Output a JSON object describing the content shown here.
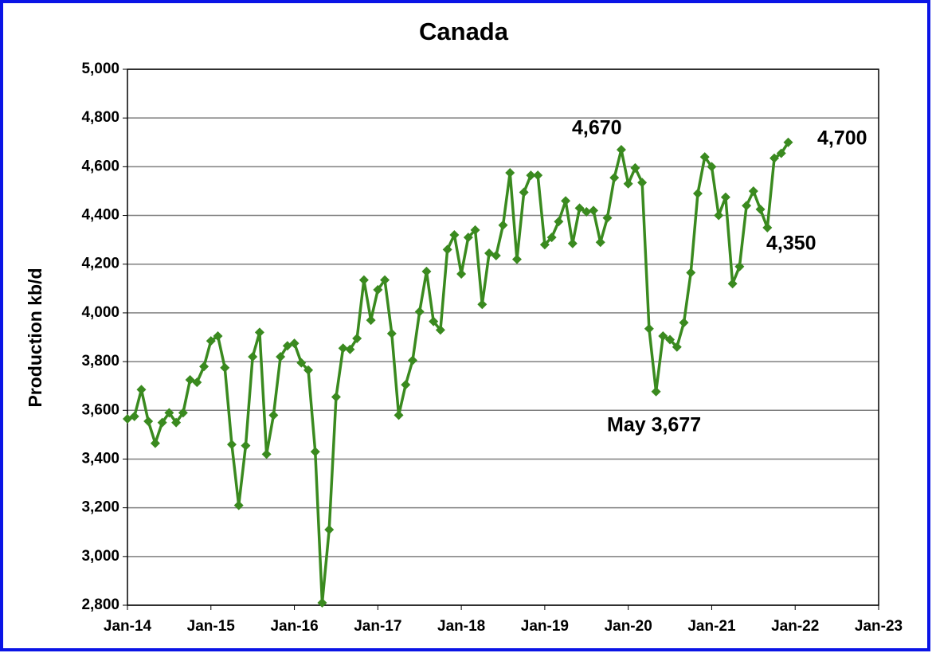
{
  "chart_data": {
    "type": "line",
    "title": "Canada",
    "y_label": "Production kb/d",
    "x": [
      2014,
      2014.0833,
      2014.1667,
      2014.25,
      2014.3333,
      2014.4167,
      2014.5,
      2014.5833,
      2014.6667,
      2014.75,
      2014.8333,
      2014.9167,
      2015,
      2015.0833,
      2015.1667,
      2015.25,
      2015.3333,
      2015.4167,
      2015.5,
      2015.5833,
      2015.6667,
      2015.75,
      2015.8333,
      2015.9167,
      2016,
      2016.0833,
      2016.1667,
      2016.25,
      2016.3333,
      2016.4167,
      2016.5,
      2016.5833,
      2016.6667,
      2016.75,
      2016.8333,
      2016.9167,
      2017,
      2017.0833,
      2017.1667,
      2017.25,
      2017.3333,
      2017.4167,
      2017.5,
      2017.5833,
      2017.6667,
      2017.75,
      2017.8333,
      2017.9167,
      2018,
      2018.0833,
      2018.1667,
      2018.25,
      2018.3333,
      2018.4167,
      2018.5,
      2018.5833,
      2018.6667,
      2018.75,
      2018.8333,
      2018.9167,
      2019,
      2019.0833,
      2019.1667,
      2019.25,
      2019.3333,
      2019.4167,
      2019.5,
      2019.5833,
      2019.6667,
      2019.75,
      2019.8333,
      2019.9167,
      2020,
      2020.0833,
      2020.1667,
      2020.25,
      2020.3333,
      2020.4167,
      2020.5,
      2020.5833,
      2020.6667,
      2020.75,
      2020.8333,
      2020.9167,
      2021,
      2021.0833,
      2021.1667,
      2021.25,
      2021.3333,
      2021.4167,
      2021.5,
      2021.5833,
      2021.6667,
      2021.75,
      2021.8333,
      2021.9167
    ],
    "series": [
      {
        "color": "#3a8a1f",
        "values": [
          3565,
          3575,
          3685,
          3555,
          3465,
          3550,
          3590,
          3550,
          3590,
          3725,
          3715,
          3780,
          3885,
          3905,
          3775,
          3460,
          3210,
          3455,
          3820,
          3920,
          3420,
          3580,
          3820,
          3865,
          3875,
          3795,
          3765,
          3430,
          2810,
          3110,
          3655,
          3855,
          3850,
          3895,
          4135,
          3970,
          4095,
          4135,
          3915,
          3580,
          3705,
          3805,
          4005,
          4170,
          3965,
          3930,
          4260,
          4320,
          4160,
          4310,
          4340,
          4035,
          4245,
          4235,
          4360,
          4575,
          4220,
          4495,
          4565,
          4565,
          4280,
          4310,
          4375,
          4460,
          4285,
          4430,
          4415,
          4420,
          4290,
          4390,
          4555,
          4670,
          4530,
          4595,
          4535,
          3935,
          3677,
          3905,
          3890,
          3860,
          3960,
          4165,
          4490,
          4640,
          4600,
          4400,
          4475,
          4120,
          4190,
          4440,
          4500,
          4425,
          4350,
          4635,
          4655,
          4700
        ]
      }
    ],
    "xlim": [
      2014,
      2023
    ],
    "xticks": [
      {
        "value": 2014,
        "label": "Jan-14"
      },
      {
        "value": 2015,
        "label": "Jan-15"
      },
      {
        "value": 2016,
        "label": "Jan-16"
      },
      {
        "value": 2017,
        "label": "Jan-17"
      },
      {
        "value": 2018,
        "label": "Jan-18"
      },
      {
        "value": 2019,
        "label": "Jan-19"
      },
      {
        "value": 2020,
        "label": "Jan-20"
      },
      {
        "value": 2021,
        "label": "Jan-21"
      },
      {
        "value": 2022,
        "label": "Jan-22"
      },
      {
        "value": 2023,
        "label": "Jan-23"
      }
    ],
    "ylim": [
      2800,
      5000
    ],
    "yticks": [
      {
        "value": 2800,
        "label": "2,800"
      },
      {
        "value": 3000,
        "label": "3,000"
      },
      {
        "value": 3200,
        "label": "3,200"
      },
      {
        "value": 3400,
        "label": "3,400"
      },
      {
        "value": 3600,
        "label": "3,600"
      },
      {
        "value": 3800,
        "label": "3,800"
      },
      {
        "value": 4000,
        "label": "4,000"
      },
      {
        "value": 4200,
        "label": "4,200"
      },
      {
        "value": 4400,
        "label": "4,400"
      },
      {
        "value": 4600,
        "label": "4,600"
      },
      {
        "value": 4800,
        "label": "4,800"
      },
      {
        "value": 5000,
        "label": "5,000"
      }
    ],
    "grid": true,
    "annotations": [
      "4,670",
      "4,700",
      "4,350",
      "May 3,677"
    ]
  }
}
